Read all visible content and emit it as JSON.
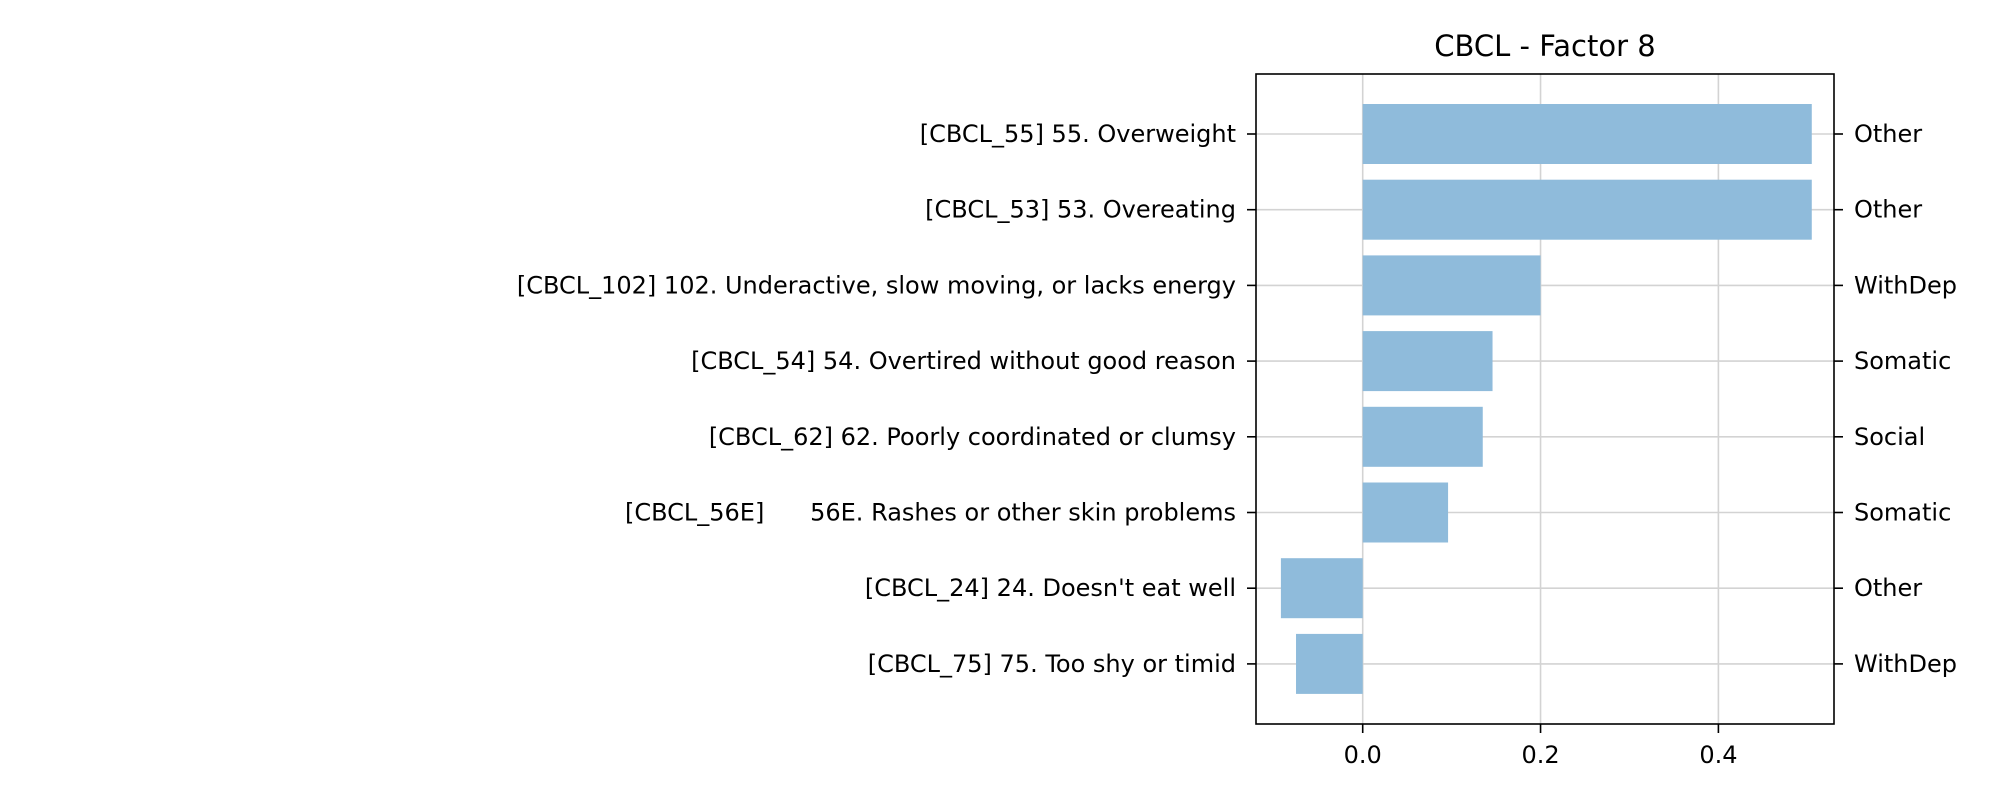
{
  "chart_data": {
    "type": "bar",
    "orientation": "horizontal",
    "title": "CBCL - Factor 8",
    "xlabel": "",
    "ylabel": "",
    "xlim": [
      -0.12,
      0.53
    ],
    "x_ticks": [
      0.0,
      0.2,
      0.4
    ],
    "x_tick_labels": [
      "0.0",
      "0.2",
      "0.4"
    ],
    "grid": true,
    "bar_color": "#8fbbdb",
    "categories": [
      "[CBCL_55] 55. Overweight",
      "[CBCL_53] 53. Overeating",
      "[CBCL_102] 102. Underactive, slow moving, or lacks energy",
      "[CBCL_54] 54. Overtired without good reason",
      "[CBCL_62] 62. Poorly coordinated or clumsy",
      "[CBCL_56E]      56E. Rashes or other skin problems",
      "[CBCL_24] 24. Doesn't eat well",
      "[CBCL_75] 75. Too shy or timid"
    ],
    "values": [
      0.505,
      0.505,
      0.2,
      0.146,
      0.135,
      0.096,
      -0.092,
      -0.075
    ],
    "right_labels": [
      "Other",
      "Other",
      "WithDep",
      "Somatic",
      "Social",
      "Somatic",
      "Other",
      "WithDep"
    ]
  }
}
